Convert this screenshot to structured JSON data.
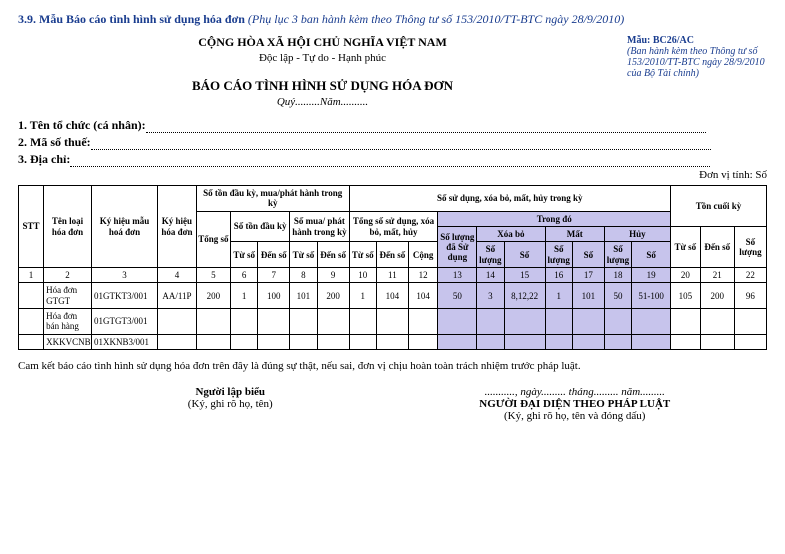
{
  "header": {
    "section_no": "3.9.",
    "section_title": "Mẫu Báo cáo tình hình sử dụng hóa đơn",
    "section_note": "(Phụ lục 3 ban hành kèm theo Thông tư số 153/2010/TT-BTC ngày 28/9/2010)"
  },
  "top": {
    "nation": "CỘNG HÒA XÃ HỘI CHỦ NGHĨA VIỆT NAM",
    "motto": "Độc lập - Tự do - Hạnh phúc",
    "title": "BÁO CÁO TÌNH HÌNH SỬ DỤNG HÓA ĐƠN",
    "period": "Quý.........Năm..........",
    "mau_label": "Mẫu: BC26/AC",
    "mau_note": "(Ban hành kèm theo Thông tư số 153/2010/TT-BTC ngày 28/9/2010 của Bộ Tài chính)"
  },
  "info": {
    "line1_label": "1. Tên tổ chức (cá nhân):",
    "line2_label": "2. Mã số thuế:",
    "line3_label": "3. Địa chỉ:",
    "unit": "Đơn vị tính: Số"
  },
  "thead": {
    "stt": "STT",
    "ten_loai": "Tên loại hóa đơn",
    "ky_hieu_mau": "Ký hiệu mẫu hoá đơn",
    "ky_hieu_hd": "Ký hiệu hóa đơn",
    "grp_dk": "Số tồn đầu kỳ, mua/phát hành trong kỳ",
    "tong_so": "Tổng số",
    "so_ton_dk": "Số tồn đầu kỳ",
    "so_mua_ph": "Số mua/ phát hành trong kỳ",
    "grp_sd": "Số sử dụng, xóa bỏ, mất, hủy trong kỳ",
    "tong_sd": "Tổng số sử dụng, xóa bỏ, mất, hủy",
    "trong_do": "Trong đó",
    "sl_da_sd": "Số lượng đã Sử dụng",
    "xoa_bo": "Xóa bỏ",
    "mat": "Mất",
    "huy": "Hủy",
    "ton_ck": "Tồn cuối kỳ",
    "tu_so": "Từ số",
    "den_so": "Đến số",
    "cong": "Cộng",
    "so": "Số",
    "so_luong": "Số lượng"
  },
  "num_row": [
    "1",
    "2",
    "3",
    "4",
    "5",
    "6",
    "7",
    "8",
    "9",
    "10",
    "11",
    "12",
    "13",
    "14",
    "15",
    "16",
    "17",
    "18",
    "19",
    "20",
    "21",
    "22"
  ],
  "rows": [
    {
      "ten": "Hóa đơn GTGT",
      "mau": "01GTKT3/001",
      "kh": "AA/11P",
      "c": [
        "200",
        "1",
        "100",
        "101",
        "200",
        "1",
        "104",
        "104",
        "50",
        "3",
        "8,12,22",
        "1",
        "101",
        "50",
        "51-100",
        "105",
        "200",
        "96"
      ]
    },
    {
      "ten": "Hóa đơn bán hàng",
      "mau": "01GTGT3/001",
      "kh": "",
      "c": [
        "",
        "",
        "",
        "",
        "",
        "",
        "",
        "",
        "",
        "",
        "",
        "",
        "",
        "",
        "",
        "",
        "",
        ""
      ]
    },
    {
      "ten": "XKKVCNB",
      "mau": "01XKNB3/001",
      "kh": "",
      "c": [
        "",
        "",
        "",
        "",
        "",
        "",
        "",
        "",
        "",
        "",
        "",
        "",
        "",
        "",
        "",
        "",
        "",
        ""
      ]
    }
  ],
  "commit": "Cam kết báo cáo tình hình sử dụng hóa đơn trên đây là đúng sự thật, nếu sai, đơn vị chịu hoàn toàn trách nhiệm trước pháp luật.",
  "sign": {
    "left_role": "Người lập biểu",
    "left_note": "(Ký, ghi rõ họ, tên)",
    "date": "..........., ngày......... tháng......... năm.........",
    "right_role": "NGƯỜI ĐẠI DIỆN THEO PHÁP LUẬT",
    "right_note": "(Ký, ghi rõ họ, tên và đóng dấu)"
  },
  "col_widths": [
    "22",
    "42",
    "58",
    "34",
    "30",
    "24",
    "28",
    "24",
    "28",
    "24",
    "28",
    "26",
    "34",
    "24",
    "36",
    "24",
    "28",
    "24",
    "34",
    "26",
    "30",
    "28"
  ]
}
